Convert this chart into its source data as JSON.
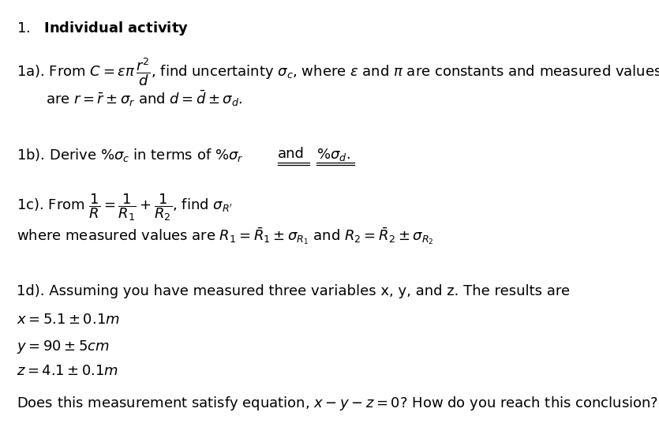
{
  "bg_color": "#ffffff",
  "text_color": "#000000",
  "figsize": [
    8.35,
    5.46
  ],
  "dpi": 100,
  "fontsize": 13.0
}
